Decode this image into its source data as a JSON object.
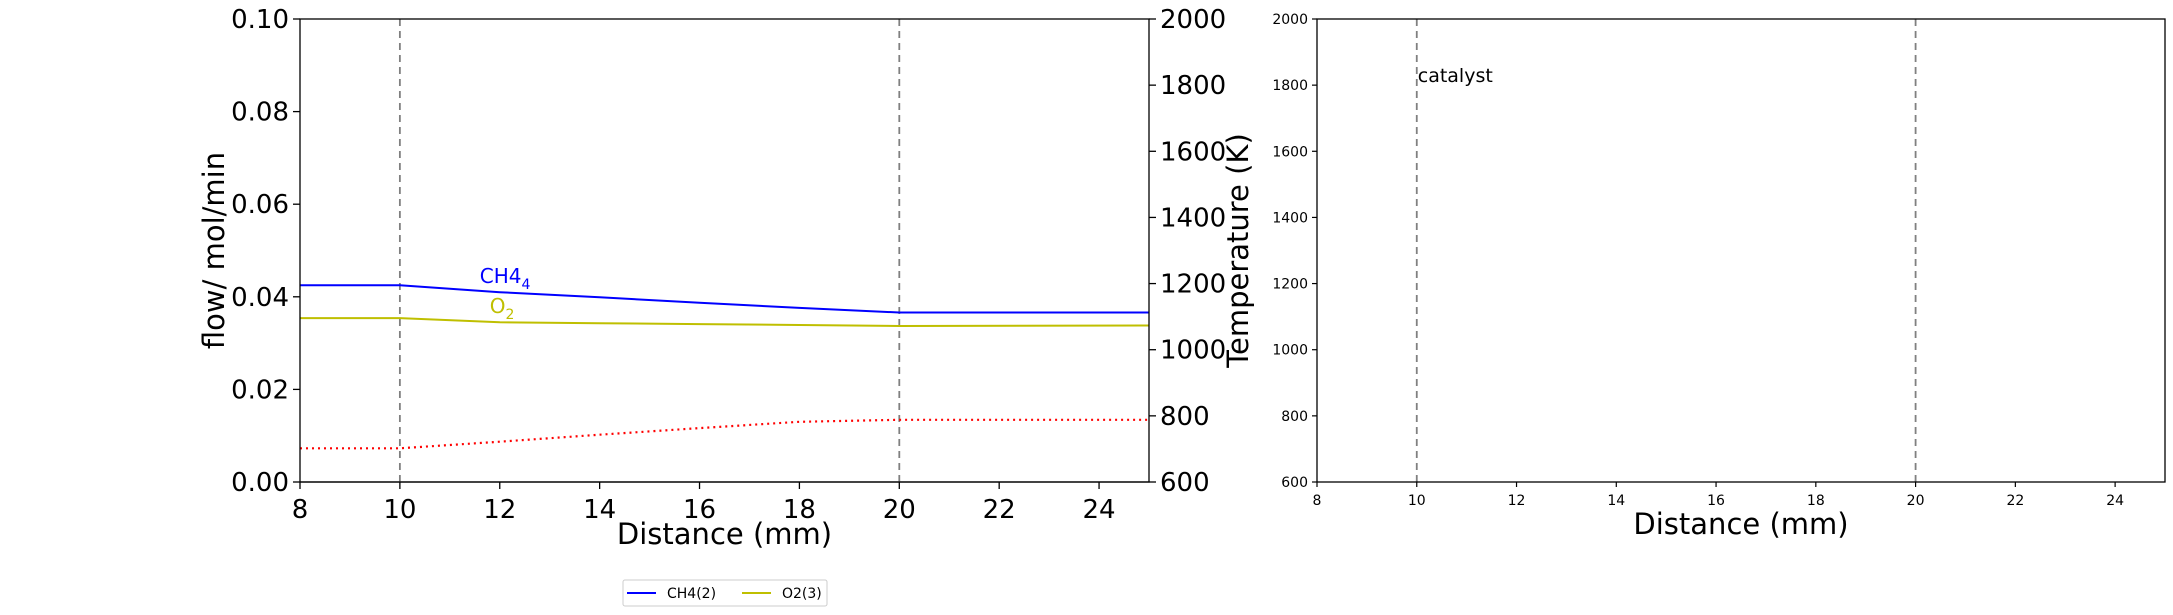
{
  "chart_data": [
    {
      "type": "line",
      "title": "",
      "xlabel": "Distance (mm)",
      "ylabel": "flow/ mol/min",
      "ylabel_right": "Temperature (K)",
      "xlim": [
        8,
        25
      ],
      "ylim": [
        0,
        0.1
      ],
      "ylim_right": [
        600,
        2000
      ],
      "xticks": [
        "8",
        "10",
        "12",
        "14",
        "16",
        "18",
        "20",
        "22",
        "24"
      ],
      "yticks": [
        "0.00",
        "0.02",
        "0.04",
        "0.06",
        "0.08",
        "0.10"
      ],
      "yticks_right": [
        "600",
        "800",
        "1000",
        "1200",
        "1400",
        "1600",
        "1800",
        "2000"
      ],
      "vlines": [
        10,
        20
      ],
      "grid": false,
      "legend": {
        "placement": "bottom-center",
        "entries": [
          {
            "label": "CH4(2)",
            "color": "#0000ff"
          },
          {
            "label": "O2(3)",
            "color": "#bfbf00"
          }
        ]
      },
      "series": [
        {
          "label": "CH4",
          "label_sub": "4",
          "label_at": [
            11.6,
            0.043
          ],
          "color": "#0000ff",
          "style": "solid",
          "axis": "left",
          "x": [
            8,
            10,
            12,
            14,
            16,
            18,
            20,
            25
          ],
          "y": [
            0.0425,
            0.0425,
            0.041,
            0.0399,
            0.0387,
            0.0376,
            0.0366,
            0.0366
          ]
        },
        {
          "label": "O",
          "label_sub": "2",
          "label_at": [
            11.8,
            0.0365
          ],
          "color": "#bfbf00",
          "style": "solid",
          "axis": "left",
          "x": [
            8,
            10,
            12,
            14,
            16,
            18,
            20,
            25
          ],
          "y": [
            0.0354,
            0.0354,
            0.0345,
            0.0343,
            0.0341,
            0.0339,
            0.0337,
            0.0338
          ]
        },
        {
          "color": "#ff0000",
          "style": "dotted",
          "axis": "right",
          "x": [
            8,
            10,
            12,
            14,
            16,
            18,
            20,
            25
          ],
          "y": [
            702,
            702,
            722,
            743,
            763,
            782,
            788,
            788
          ]
        }
      ]
    },
    {
      "type": "line",
      "title": "",
      "xlabel": "Distance (mm)",
      "ylabel": "",
      "xlim": [
        8,
        25
      ],
      "ylim": [
        600,
        2000
      ],
      "xticks": [
        "8",
        "10",
        "12",
        "14",
        "16",
        "18",
        "20",
        "22",
        "24"
      ],
      "yticks": [
        "600",
        "800",
        "1000",
        "1200",
        "1400",
        "1600",
        "1800",
        "2000"
      ],
      "vlines": [
        10,
        20
      ],
      "annotation": {
        "text": "catalyst",
        "x": 10,
        "y": 1830
      },
      "grid": false,
      "series": []
    }
  ]
}
